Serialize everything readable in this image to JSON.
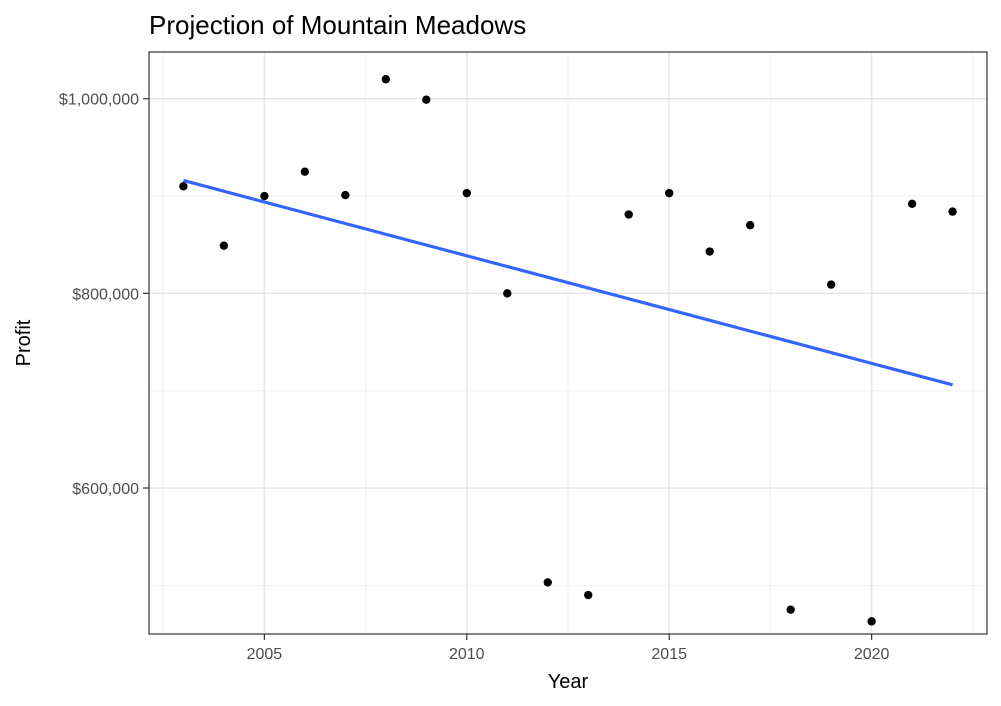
{
  "chart_data": {
    "type": "scatter",
    "title": "Projection of Mountain Meadows",
    "xlabel": "Year",
    "ylabel": "Profit",
    "xlim": [
      2002.15,
      2022.85
    ],
    "ylim": [
      450000,
      1048000
    ],
    "x_ticks": [
      2005,
      2010,
      2015,
      2020
    ],
    "x_minor_ticks": [
      2002.5,
      2007.5,
      2012.5,
      2017.5,
      2022.5
    ],
    "y_ticks": [
      600000,
      800000,
      1000000
    ],
    "y_tick_labels": [
      "$600,000",
      "$800,000",
      "$1,000,000"
    ],
    "y_minor_ticks": [
      500000,
      700000,
      900000
    ],
    "grid": true,
    "legend": "none",
    "point_color": "#000000",
    "trend_color": "#3366ff",
    "points": {
      "x": [
        2003,
        2004,
        2005,
        2006,
        2007,
        2008,
        2009,
        2010,
        2011,
        2012,
        2013,
        2014,
        2015,
        2016,
        2017,
        2018,
        2019,
        2020,
        2021,
        2022
      ],
      "y": [
        910000,
        849000,
        900000,
        925000,
        901000,
        1020000,
        999000,
        903000,
        800000,
        503000,
        490000,
        881000,
        903000,
        843000,
        870000,
        475000,
        809000,
        463000,
        892000,
        884000
      ]
    },
    "trend_line": {
      "x": [
        2003,
        2022
      ],
      "y": [
        916000,
        706000
      ]
    }
  }
}
